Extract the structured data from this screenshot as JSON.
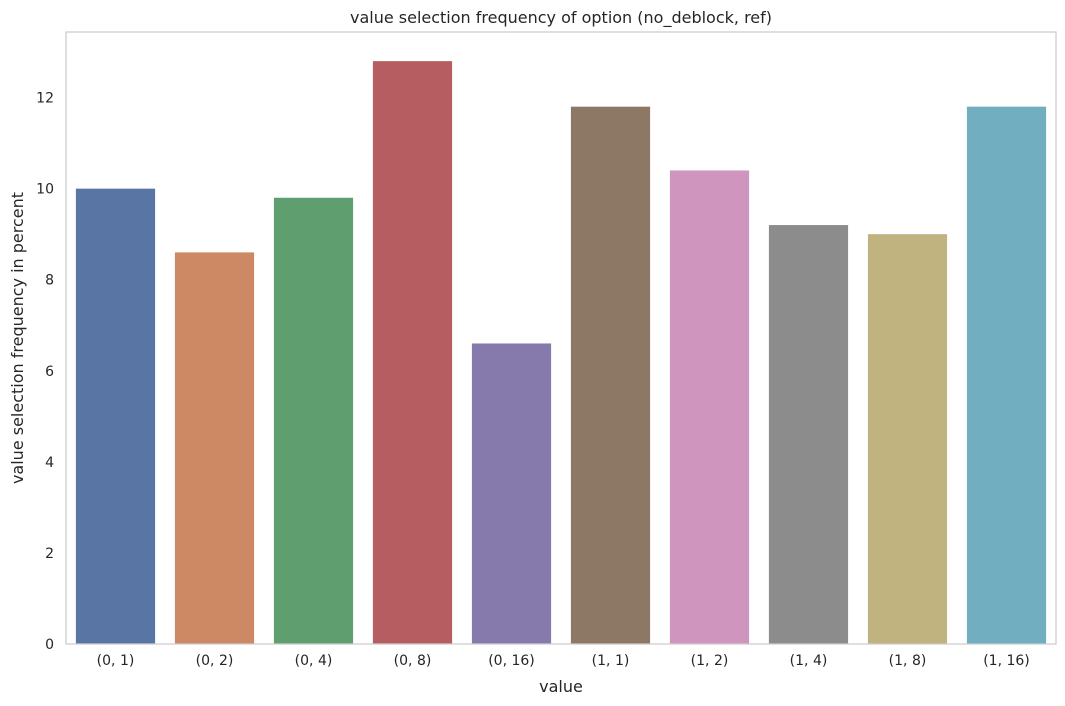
{
  "chart_data": {
    "type": "bar",
    "title": "value selection frequency of option (no_deblock, ref)",
    "xlabel": "value",
    "ylabel": "value selection frequency in percent",
    "categories": [
      "(0, 1)",
      "(0, 2)",
      "(0, 4)",
      "(0, 8)",
      "(0, 16)",
      "(1, 1)",
      "(1, 2)",
      "(1, 4)",
      "(1, 8)",
      "(1, 16)"
    ],
    "values": [
      10.0,
      8.6,
      9.8,
      12.8,
      6.6,
      11.8,
      10.4,
      9.2,
      9.0,
      11.8
    ],
    "colors": [
      "#5975a4",
      "#cc8963",
      "#5f9e6e",
      "#b55d60",
      "#857aab",
      "#8d7866",
      "#d095bf",
      "#8c8c8c",
      "#c1b37f",
      "#71aec0"
    ],
    "yticks": [
      0,
      2,
      4,
      6,
      8,
      10,
      12
    ],
    "ylim": [
      0,
      13.44
    ],
    "grid": false
  }
}
